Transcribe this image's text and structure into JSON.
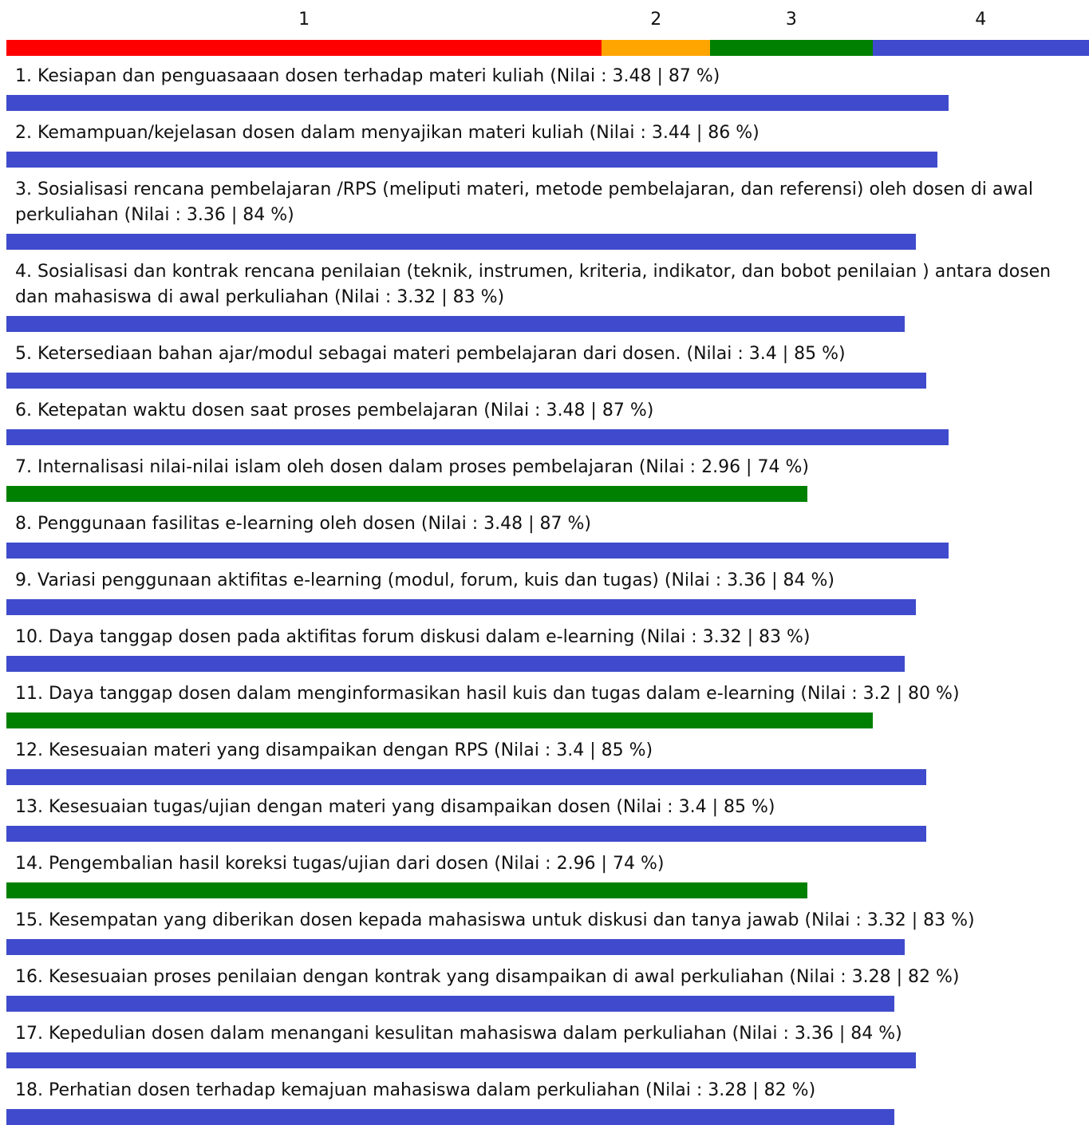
{
  "colors": {
    "level1": "#ff0000",
    "level2": "#ffa500",
    "level3": "#008000",
    "level4": "#3f4bcc"
  },
  "chart_data": {
    "type": "bar",
    "orientation": "horizontal",
    "scale_labels": [
      "1",
      "2",
      "3",
      "4"
    ],
    "xlim": [
      0,
      4
    ],
    "scale_bands": [
      {
        "label": "1",
        "from": 0,
        "to": 2.2,
        "color": "#ff0000"
      },
      {
        "label": "2",
        "from": 2.2,
        "to": 2.6,
        "color": "#ffa500"
      },
      {
        "label": "3",
        "from": 2.6,
        "to": 3.2,
        "color": "#008000"
      },
      {
        "label": "4",
        "from": 3.2,
        "to": 4.0,
        "color": "#3f4bcc"
      }
    ],
    "items": [
      {
        "label": "1. Kesiapan dan penguasaaan dosen terhadap materi kuliah (Nilai : 3.48 | 87 %)",
        "value": 3.48,
        "percent": 87,
        "color": "#3f4bcc"
      },
      {
        "label": "2. Kemampuan/kejelasan dosen dalam menyajikan materi kuliah (Nilai : 3.44 | 86 %)",
        "value": 3.44,
        "percent": 86,
        "color": "#3f4bcc"
      },
      {
        "label": "3. Sosialisasi rencana pembelajaran /RPS (meliputi materi, metode pembelajaran, dan referensi) oleh dosen di awal perkuliahan (Nilai : 3.36 | 84 %)",
        "value": 3.36,
        "percent": 84,
        "color": "#3f4bcc"
      },
      {
        "label": "4. Sosialisasi dan kontrak rencana penilaian (teknik, instrumen, kriteria, indikator, dan bobot penilaian ) antara dosen dan mahasiswa di awal perkuliahan (Nilai : 3.32 | 83 %)",
        "value": 3.32,
        "percent": 83,
        "color": "#3f4bcc"
      },
      {
        "label": "5. Ketersediaan bahan ajar/modul sebagai materi pembelajaran dari dosen. (Nilai : 3.4 | 85 %)",
        "value": 3.4,
        "percent": 85,
        "color": "#3f4bcc"
      },
      {
        "label": "6. Ketepatan waktu dosen saat proses pembelajaran (Nilai : 3.48 | 87 %)",
        "value": 3.48,
        "percent": 87,
        "color": "#3f4bcc"
      },
      {
        "label": "7. Internalisasi nilai-nilai islam oleh dosen dalam proses pembelajaran (Nilai : 2.96 | 74 %)",
        "value": 2.96,
        "percent": 74,
        "color": "#008000"
      },
      {
        "label": "8. Penggunaan fasilitas e-learning oleh dosen (Nilai : 3.48 | 87 %)",
        "value": 3.48,
        "percent": 87,
        "color": "#3f4bcc"
      },
      {
        "label": "9. Variasi penggunaan aktifitas e-learning (modul, forum, kuis dan tugas) (Nilai : 3.36 | 84 %)",
        "value": 3.36,
        "percent": 84,
        "color": "#3f4bcc"
      },
      {
        "label": "10. Daya tanggap dosen pada aktifitas forum diskusi dalam e-learning (Nilai : 3.32 | 83 %)",
        "value": 3.32,
        "percent": 83,
        "color": "#3f4bcc"
      },
      {
        "label": "11. Daya tanggap dosen dalam menginformasikan hasil kuis dan tugas dalam e-learning (Nilai : 3.2 | 80 %)",
        "value": 3.2,
        "percent": 80,
        "color": "#008000"
      },
      {
        "label": "12. Kesesuaian materi yang disampaikan dengan RPS (Nilai : 3.4 | 85 %)",
        "value": 3.4,
        "percent": 85,
        "color": "#3f4bcc"
      },
      {
        "label": "13. Kesesuaian tugas/ujian dengan materi yang disampaikan dosen (Nilai : 3.4 | 85 %)",
        "value": 3.4,
        "percent": 85,
        "color": "#3f4bcc"
      },
      {
        "label": "14. Pengembalian hasil koreksi tugas/ujian dari dosen (Nilai : 2.96 | 74 %)",
        "value": 2.96,
        "percent": 74,
        "color": "#008000"
      },
      {
        "label": "15. Kesempatan yang diberikan dosen kepada mahasiswa untuk diskusi dan tanya jawab (Nilai : 3.32 | 83 %)",
        "value": 3.32,
        "percent": 83,
        "color": "#3f4bcc"
      },
      {
        "label": "16. Kesesuaian proses penilaian dengan kontrak yang disampaikan di awal perkuliahan (Nilai : 3.28 | 82 %)",
        "value": 3.28,
        "percent": 82,
        "color": "#3f4bcc"
      },
      {
        "label": "17. Kepedulian dosen dalam menangani kesulitan mahasiswa dalam perkuliahan (Nilai : 3.36 | 84 %)",
        "value": 3.36,
        "percent": 84,
        "color": "#3f4bcc"
      },
      {
        "label": "18. Perhatian dosen terhadap kemajuan mahasiswa dalam perkuliahan (Nilai : 3.28 | 82 %)",
        "value": 3.28,
        "percent": 82,
        "color": "#3f4bcc"
      }
    ]
  }
}
